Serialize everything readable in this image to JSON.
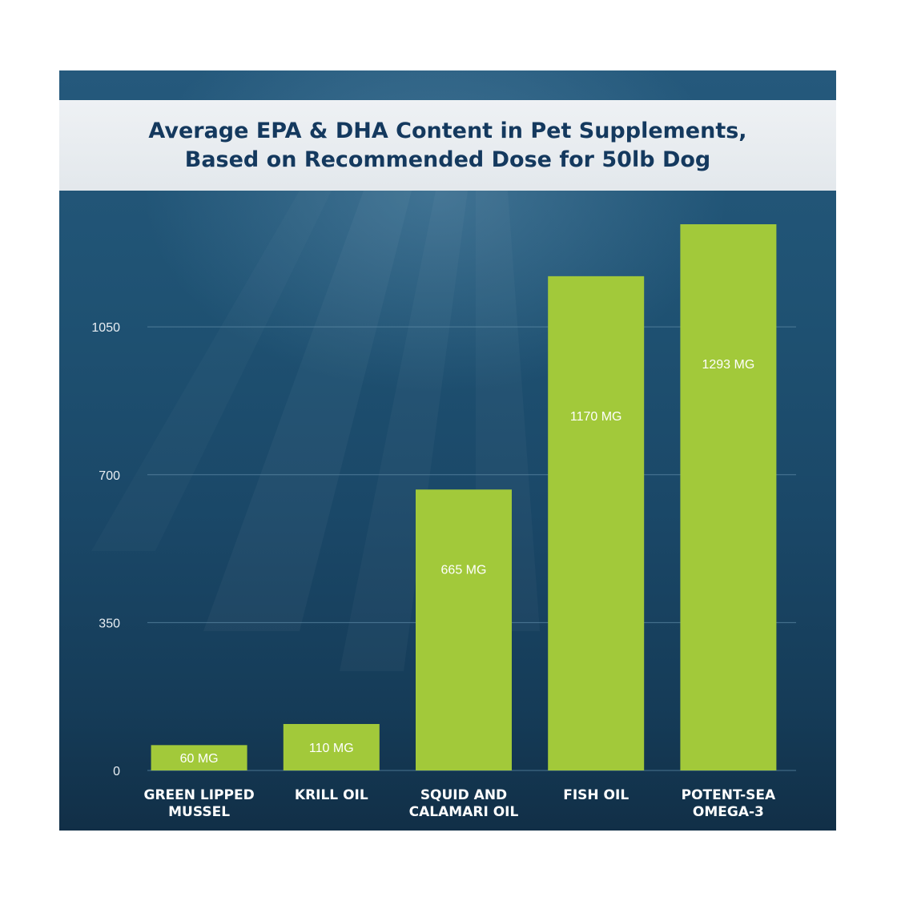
{
  "chart_data": {
    "type": "bar",
    "title": "Average EPA & DHA Content in Pet Supplements,\nBased on Recommended Dose for 50lb Dog",
    "xlabel": "",
    "ylabel": "",
    "categories": [
      [
        "GREEN LIPPED",
        "MUSSEL"
      ],
      [
        "KRILL OIL"
      ],
      [
        "SQUID AND",
        "CALAMARI OIL"
      ],
      [
        "FISH OIL"
      ],
      [
        "POTENT-SEA",
        "OMEGA-3"
      ]
    ],
    "values": [
      60,
      110,
      665,
      1170,
      1293
    ],
    "data_labels": [
      "60 MG",
      "110 MG",
      "665 MG",
      "1170 MG",
      "1293 MG"
    ],
    "yticks": [
      0,
      350,
      700,
      1050
    ],
    "ylim": [
      0,
      1293
    ],
    "grid": true,
    "legend": "none",
    "colors": {
      "bar": "#a2c93a",
      "gridline": "#5d8aa6",
      "title_text": "#14395e",
      "title_band": "#e8ecef",
      "background": "#1c4a6b"
    }
  }
}
